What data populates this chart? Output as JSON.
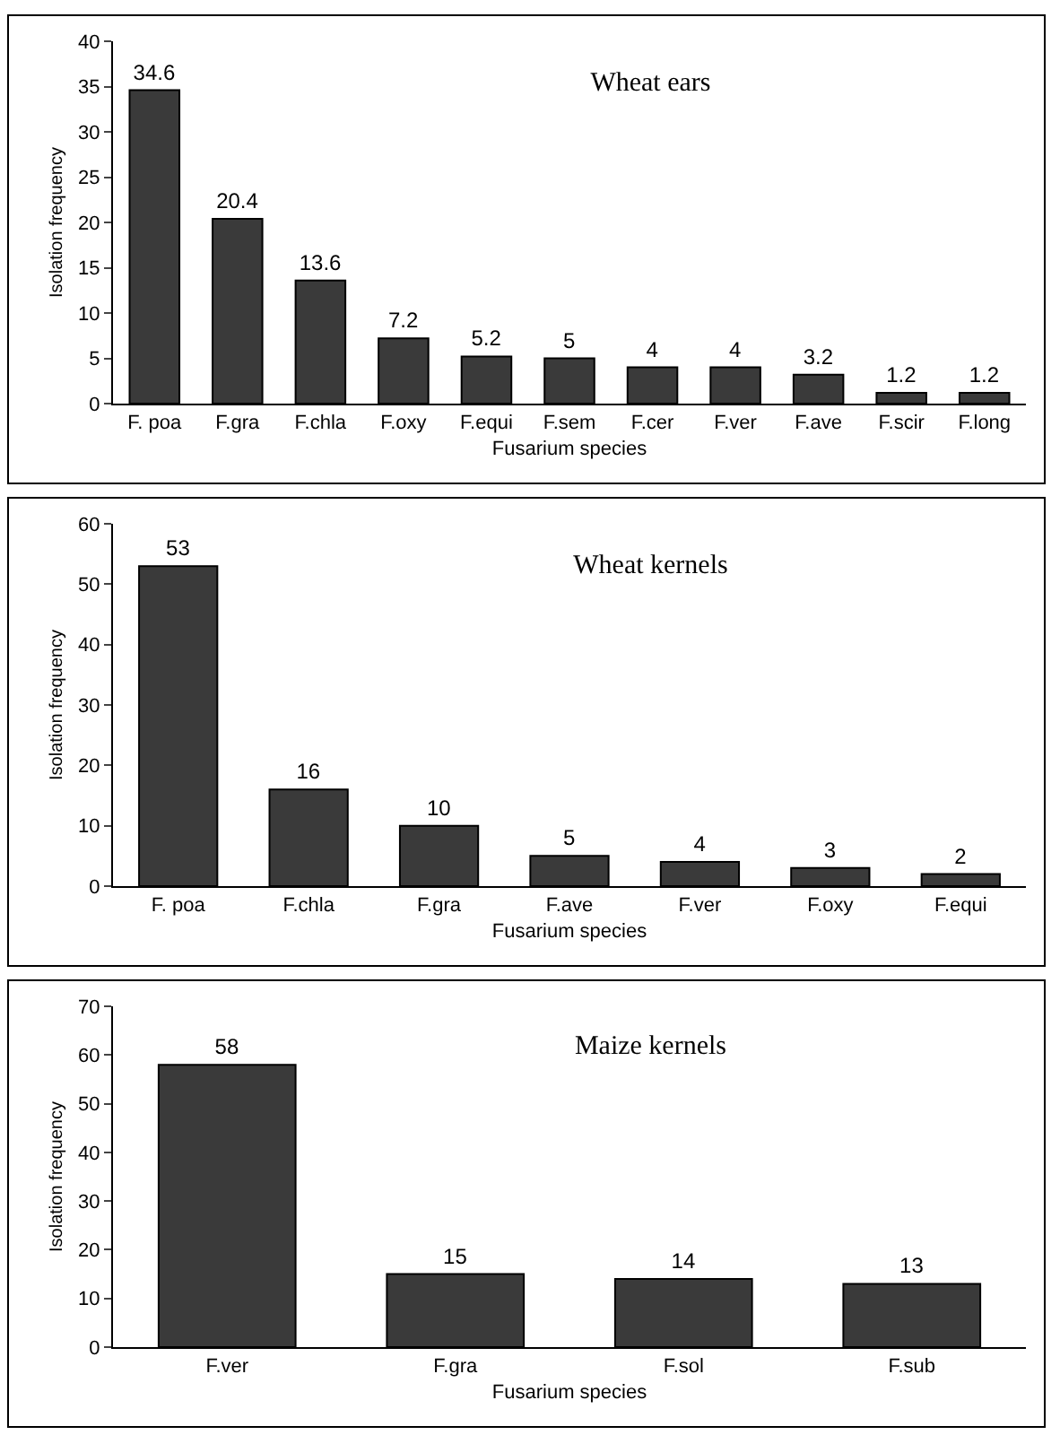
{
  "chart_data": [
    {
      "type": "bar",
      "title": "Wheat ears",
      "xlabel": "Fusarium species",
      "ylabel": "Isolation frequency",
      "categories": [
        "F. poa",
        "F.gra",
        "F.chla",
        "F.oxy",
        "F.equi",
        "F.sem",
        "F.cer",
        "F.ver",
        "F.ave",
        "F.scir",
        "F.long"
      ],
      "values": [
        34.6,
        20.4,
        13.6,
        7.2,
        5.2,
        5,
        4,
        4,
        3.2,
        1.2,
        1.2
      ],
      "color": "#3a3a3a",
      "ylim": [
        0,
        40
      ],
      "yticks": [
        0,
        5,
        10,
        15,
        20,
        25,
        30,
        35,
        40
      ],
      "data_labels": true,
      "grid": false
    },
    {
      "type": "bar",
      "title": "Wheat kernels",
      "xlabel": "Fusarium species",
      "ylabel": "Isolation frequency",
      "categories": [
        "F. poa",
        "F.chla",
        "F.gra",
        "F.ave",
        "F.ver",
        "F.oxy",
        "F.equi"
      ],
      "values": [
        53,
        16,
        10,
        5,
        4,
        3,
        2
      ],
      "color": "#3a3a3a",
      "ylim": [
        0,
        60
      ],
      "yticks": [
        0,
        10,
        20,
        30,
        40,
        50,
        60
      ],
      "data_labels": true,
      "grid": false
    },
    {
      "type": "bar",
      "title": "Maize kernels",
      "xlabel": "Fusarium species",
      "ylabel": "Isolation frequency",
      "categories": [
        "F.ver",
        "F.gra",
        "F.sol",
        "F.sub"
      ],
      "values": [
        58,
        15,
        14,
        13
      ],
      "color": "#3a3a3a",
      "ylim": [
        0,
        70
      ],
      "yticks": [
        0,
        10,
        20,
        30,
        40,
        50,
        60,
        70
      ],
      "data_labels": true,
      "grid": false
    }
  ]
}
